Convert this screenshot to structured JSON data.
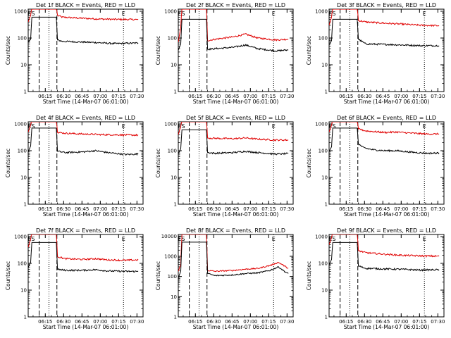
{
  "figure": {
    "x_tick_labels": [
      "06:15",
      "06:30",
      "06:45",
      "07:00",
      "07:15",
      "07:30"
    ],
    "y_tick_labels": [
      "1",
      "10",
      "100",
      "1000"
    ],
    "y_tick_labels_wide": [
      "1",
      "10",
      "100",
      "1000",
      "10000"
    ]
  },
  "chart_data": [
    {
      "type": "line",
      "title": "Det 1f BLACK = Events, RED = LLD",
      "xlabel": "Start Time (14-Mar-07 06:01:00)",
      "ylabel": "Counts/sec",
      "yscale": "log",
      "ylim": [
        1,
        1200
      ],
      "x_markers": [
        {
          "label": "E",
          "time": "06:02"
        },
        {
          "label": "S",
          "time": "06:05"
        }
      ],
      "x_end_marker": {
        "label": "E",
        "time": "07:19"
      },
      "series": [
        {
          "name": "LLD",
          "color": "#e00000",
          "points": [
            [
              0,
              400
            ],
            [
              2,
              700
            ],
            [
              3,
              1500
            ],
            [
              23,
              1500
            ],
            [
              24,
              700
            ],
            [
              28,
              600
            ],
            [
              40,
              560
            ],
            [
              55,
              520
            ],
            [
              70,
              500
            ],
            [
              90,
              490
            ]
          ]
        },
        {
          "name": "Events",
          "color": "#000000",
          "points": [
            [
              0,
              70
            ],
            [
              2,
              90
            ],
            [
              3,
              600
            ],
            [
              23,
              600
            ],
            [
              24,
              85
            ],
            [
              28,
              75
            ],
            [
              40,
              72
            ],
            [
              55,
              68
            ],
            [
              70,
              62
            ],
            [
              90,
              65
            ]
          ]
        }
      ]
    },
    {
      "type": "line",
      "title": "Det 2f BLACK = Events, RED = LLD",
      "xlabel": "Start Time (14-Mar-07 06:01:00)",
      "ylabel": "Counts/sec",
      "yscale": "log",
      "ylim": [
        1,
        1200
      ],
      "x_markers": [
        {
          "label": "E",
          "time": "06:02"
        },
        {
          "label": "S",
          "time": "06:05"
        }
      ],
      "x_end_marker": {
        "label": "E",
        "time": "07:19"
      },
      "series": [
        {
          "name": "LLD",
          "color": "#e00000",
          "points": [
            [
              0,
              70
            ],
            [
              2,
              250
            ],
            [
              3,
              1500
            ],
            [
              23,
              1500
            ],
            [
              24,
              80
            ],
            [
              30,
              90
            ],
            [
              45,
              110
            ],
            [
              55,
              140
            ],
            [
              65,
              100
            ],
            [
              80,
              85
            ],
            [
              90,
              90
            ]
          ]
        },
        {
          "name": "Events",
          "color": "#000000",
          "points": [
            [
              0,
              35
            ],
            [
              2,
              60
            ],
            [
              3,
              500
            ],
            [
              23,
              500
            ],
            [
              24,
              38
            ],
            [
              30,
              40
            ],
            [
              45,
              45
            ],
            [
              55,
              55
            ],
            [
              65,
              40
            ],
            [
              80,
              33
            ],
            [
              90,
              36
            ]
          ]
        }
      ]
    },
    {
      "type": "line",
      "title": "Det 3f BLACK = Events, RED = LLD",
      "xlabel": "Start Time (14-Mar-07 06:01:00)",
      "ylabel": "Counts/sec",
      "yscale": "log",
      "ylim": [
        1,
        1200
      ],
      "x_markers": [
        {
          "label": "E",
          "time": "06:02"
        },
        {
          "label": "S",
          "time": "06:05"
        }
      ],
      "x_end_marker": {
        "label": "E",
        "time": "07:19"
      },
      "series": [
        {
          "name": "LLD",
          "color": "#e00000",
          "points": [
            [
              0,
              300
            ],
            [
              2,
              600
            ],
            [
              3,
              1500
            ],
            [
              23,
              1500
            ],
            [
              24,
              450
            ],
            [
              30,
              400
            ],
            [
              45,
              360
            ],
            [
              60,
              330
            ],
            [
              75,
              300
            ],
            [
              90,
              290
            ]
          ]
        },
        {
          "name": "Events",
          "color": "#000000",
          "points": [
            [
              0,
              55
            ],
            [
              2,
              80
            ],
            [
              3,
              500
            ],
            [
              23,
              500
            ],
            [
              24,
              90
            ],
            [
              30,
              60
            ],
            [
              45,
              58
            ],
            [
              60,
              55
            ],
            [
              75,
              52
            ],
            [
              90,
              52
            ]
          ]
        }
      ]
    },
    {
      "type": "line",
      "title": "Det 4f BLACK = Events, RED = LLD",
      "xlabel": "Start Time (14-Mar-07 06:01:00)",
      "ylabel": "Counts/sec",
      "yscale": "log",
      "ylim": [
        1,
        1200
      ],
      "x_markers": [
        {
          "label": "E",
          "time": "06:02"
        },
        {
          "label": "S",
          "time": "06:05"
        }
      ],
      "x_end_marker": {
        "label": "E",
        "time": "07:19"
      },
      "series": [
        {
          "name": "LLD",
          "color": "#e00000",
          "points": [
            [
              0,
              500
            ],
            [
              2,
              900
            ],
            [
              3,
              1500
            ],
            [
              23,
              1500
            ],
            [
              24,
              480
            ],
            [
              30,
              450
            ],
            [
              45,
              420
            ],
            [
              60,
              400
            ],
            [
              75,
              390
            ],
            [
              90,
              380
            ]
          ]
        },
        {
          "name": "Events",
          "color": "#000000",
          "points": [
            [
              0,
              90
            ],
            [
              2,
              150
            ],
            [
              3,
              700
            ],
            [
              23,
              700
            ],
            [
              24,
              95
            ],
            [
              30,
              85
            ],
            [
              45,
              90
            ],
            [
              55,
              100
            ],
            [
              65,
              85
            ],
            [
              80,
              72
            ],
            [
              90,
              75
            ]
          ]
        }
      ]
    },
    {
      "type": "line",
      "title": "Det 5f BLACK = Events, RED = LLD",
      "xlabel": "Start Time (14-Mar-07 06:01:00)",
      "ylabel": "Counts/sec",
      "yscale": "log",
      "ylim": [
        1,
        1200
      ],
      "x_markers": [
        {
          "label": "E",
          "time": "06:02"
        },
        {
          "label": "S",
          "time": "06:05"
        }
      ],
      "x_end_marker": {
        "label": "E",
        "time": "07:19"
      },
      "series": [
        {
          "name": "LLD",
          "color": "#e00000",
          "points": [
            [
              0,
              400
            ],
            [
              2,
              800
            ],
            [
              3,
              1500
            ],
            [
              23,
              1500
            ],
            [
              24,
              300
            ],
            [
              30,
              290
            ],
            [
              45,
              280
            ],
            [
              55,
              300
            ],
            [
              65,
              270
            ],
            [
              80,
              250
            ],
            [
              90,
              250
            ]
          ]
        },
        {
          "name": "Events",
          "color": "#000000",
          "points": [
            [
              0,
              75
            ],
            [
              2,
              120
            ],
            [
              3,
              600
            ],
            [
              23,
              600
            ],
            [
              24,
              85
            ],
            [
              30,
              80
            ],
            [
              45,
              85
            ],
            [
              55,
              95
            ],
            [
              65,
              85
            ],
            [
              80,
              75
            ],
            [
              90,
              78
            ]
          ]
        }
      ]
    },
    {
      "type": "line",
      "title": "Det 6f BLACK = Events, RED = LLD",
      "xlabel": "Start Time (14-Mar-07 06:01:00)",
      "ylabel": "Counts/sec",
      "yscale": "log",
      "ylim": [
        1,
        1200
      ],
      "x_markers": [
        {
          "label": "E",
          "time": "06:02"
        },
        {
          "label": "S",
          "time": "06:05"
        }
      ],
      "x_end_marker": {
        "label": "E",
        "time": "07:19"
      },
      "series": [
        {
          "name": "LLD",
          "color": "#e00000",
          "points": [
            [
              0,
              500
            ],
            [
              2,
              900
            ],
            [
              3,
              1500
            ],
            [
              23,
              1500
            ],
            [
              24,
              650
            ],
            [
              30,
              550
            ],
            [
              45,
              480
            ],
            [
              55,
              500
            ],
            [
              65,
              460
            ],
            [
              80,
              420
            ],
            [
              90,
              420
            ]
          ]
        },
        {
          "name": "Events",
          "color": "#000000",
          "points": [
            [
              0,
              95
            ],
            [
              2,
              140
            ],
            [
              3,
              700
            ],
            [
              23,
              700
            ],
            [
              24,
              180
            ],
            [
              28,
              130
            ],
            [
              35,
              110
            ],
            [
              45,
              100
            ],
            [
              55,
              100
            ],
            [
              65,
              90
            ],
            [
              80,
              80
            ],
            [
              90,
              82
            ]
          ]
        }
      ]
    },
    {
      "type": "line",
      "title": "Det 7f BLACK = Events, RED = LLD",
      "xlabel": "Start Time (14-Mar-07 06:01:00)",
      "ylabel": "Counts/sec",
      "yscale": "log",
      "ylim": [
        1,
        1200
      ],
      "x_markers": [
        {
          "label": "E",
          "time": "06:02"
        },
        {
          "label": "S",
          "time": "06:05"
        }
      ],
      "x_end_marker": {
        "label": "E",
        "time": "07:19"
      },
      "series": [
        {
          "name": "LLD",
          "color": "#e00000",
          "points": [
            [
              0,
              400
            ],
            [
              2,
              800
            ],
            [
              3,
              1500
            ],
            [
              23,
              1500
            ],
            [
              24,
              180
            ],
            [
              30,
              150
            ],
            [
              45,
              140
            ],
            [
              55,
              150
            ],
            [
              65,
              135
            ],
            [
              80,
              130
            ],
            [
              90,
              135
            ]
          ]
        },
        {
          "name": "Events",
          "color": "#000000",
          "points": [
            [
              0,
              70
            ],
            [
              2,
              110
            ],
            [
              3,
              600
            ],
            [
              23,
              600
            ],
            [
              24,
              60
            ],
            [
              30,
              55
            ],
            [
              45,
              55
            ],
            [
              55,
              58
            ],
            [
              65,
              52
            ],
            [
              80,
              50
            ],
            [
              90,
              50
            ]
          ]
        }
      ]
    },
    {
      "type": "line",
      "title": "Det 8f BLACK = Events, RED = LLD",
      "xlabel": "Start Time (14-Mar-07 06:01:00)",
      "ylabel": "Counts/sec",
      "yscale": "log",
      "ylim": [
        1,
        12000
      ],
      "x_markers": [
        {
          "label": "E",
          "time": "06:02"
        },
        {
          "label": "S",
          "time": "06:05"
        }
      ],
      "x_end_marker": {
        "label": "E",
        "time": "07:19"
      },
      "series": [
        {
          "name": "LLD",
          "color": "#e00000",
          "points": [
            [
              0,
              180
            ],
            [
              2,
              400
            ],
            [
              3,
              15000
            ],
            [
              23,
              15000
            ],
            [
              24,
              200
            ],
            [
              30,
              180
            ],
            [
              45,
              200
            ],
            [
              55,
              230
            ],
            [
              65,
              250
            ],
            [
              75,
              350
            ],
            [
              82,
              500
            ],
            [
              88,
              300
            ],
            [
              90,
              250
            ]
          ]
        },
        {
          "name": "Events",
          "color": "#000000",
          "points": [
            [
              0,
              85
            ],
            [
              2,
              180
            ],
            [
              3,
              5000
            ],
            [
              23,
              5000
            ],
            [
              24,
              140
            ],
            [
              30,
              110
            ],
            [
              45,
              120
            ],
            [
              55,
              140
            ],
            [
              65,
              150
            ],
            [
              75,
              200
            ],
            [
              82,
              300
            ],
            [
              88,
              160
            ],
            [
              90,
              140
            ]
          ]
        }
      ]
    },
    {
      "type": "line",
      "title": "Det 9f BLACK = Events, RED = LLD",
      "xlabel": "Start Time (14-Mar-07 06:01:00)",
      "ylabel": "Counts/sec",
      "yscale": "log",
      "ylim": [
        1,
        1200
      ],
      "x_markers": [
        {
          "label": "E",
          "time": "06:02"
        },
        {
          "label": "S",
          "time": "06:05"
        }
      ],
      "x_end_marker": {
        "label": "E",
        "time": "07:19"
      },
      "series": [
        {
          "name": "LLD",
          "color": "#e00000",
          "points": [
            [
              0,
              500
            ],
            [
              2,
              900
            ],
            [
              3,
              1500
            ],
            [
              23,
              1500
            ],
            [
              24,
              300
            ],
            [
              30,
              250
            ],
            [
              45,
              220
            ],
            [
              60,
              200
            ],
            [
              75,
              190
            ],
            [
              90,
              185
            ]
          ]
        },
        {
          "name": "Events",
          "color": "#000000",
          "points": [
            [
              0,
              90
            ],
            [
              2,
              140
            ],
            [
              3,
              600
            ],
            [
              23,
              600
            ],
            [
              24,
              80
            ],
            [
              30,
              65
            ],
            [
              45,
              62
            ],
            [
              60,
              60
            ],
            [
              75,
              56
            ],
            [
              90,
              58
            ]
          ]
        }
      ]
    }
  ]
}
